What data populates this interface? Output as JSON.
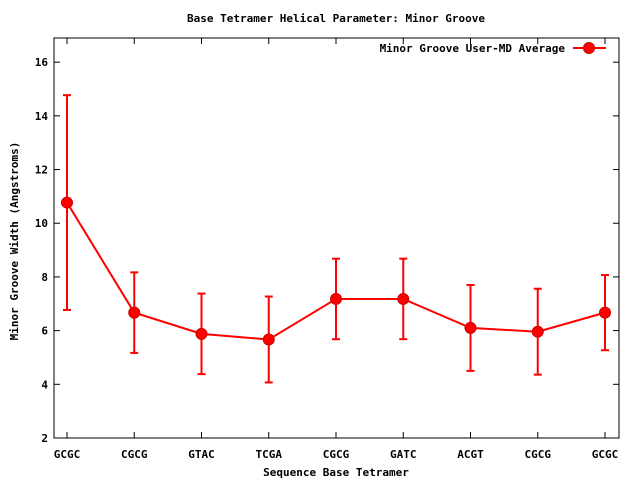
{
  "chart_data": {
    "type": "line",
    "title": "Base Tetramer Helical Parameter: Minor Groove",
    "xlabel": "Sequence Base Tetramer",
    "ylabel": "Minor Groove Width (Angstroms)",
    "categories": [
      "GCGC",
      "CGCG",
      "GTAC",
      "TCGA",
      "CGCG",
      "GATC",
      "ACGT",
      "CGCG",
      "GCGC"
    ],
    "ylim": [
      2,
      16.9
    ],
    "yticks": [
      2,
      4,
      6,
      8,
      10,
      12,
      14,
      16
    ],
    "grid": false,
    "legend_position": "top-right",
    "series": [
      {
        "name": "Minor Groove User-MD Average",
        "color": "#ff0000",
        "values": [
          10.77,
          6.67,
          5.88,
          5.67,
          7.18,
          7.18,
          6.1,
          5.96,
          6.67
        ],
        "error": [
          4.0,
          1.5,
          1.5,
          1.6,
          1.5,
          1.5,
          1.6,
          1.6,
          1.4
        ]
      }
    ]
  }
}
